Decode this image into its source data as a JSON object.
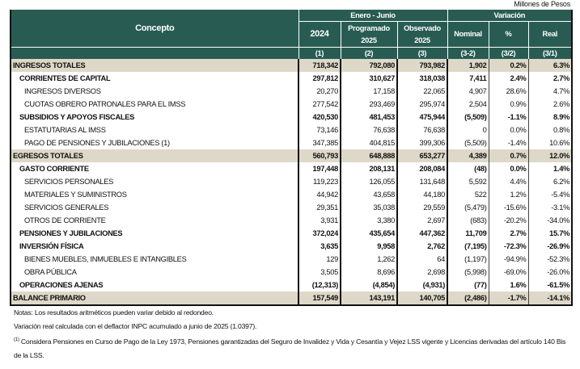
{
  "units": "Millones de Pesos",
  "header": {
    "concept": "Concepto",
    "period": "Enero - Junio",
    "variation": "Variación",
    "cols": [
      "2024",
      "Programado 2025",
      "Observado 2025",
      "Nominal",
      "%",
      "Real"
    ],
    "codes": [
      "(1)",
      "(2)",
      "(3)",
      "(3-2)",
      "(3/2)",
      "(3/1)"
    ]
  },
  "rows": [
    {
      "label": "INGRESOS TOTALES",
      "v": [
        "718,342",
        "792,080",
        "793,982",
        "1,902",
        "0.2%",
        "6.3%"
      ]
    },
    {
      "label": "CORRIENTES DE CAPITAL",
      "v": [
        "297,812",
        "310,627",
        "318,038",
        "7,411",
        "2.4%",
        "2.7%"
      ]
    },
    {
      "label": "INGRESOS DIVERSOS",
      "v": [
        "20,270",
        "17,158",
        "22,065",
        "4,907",
        "28.6%",
        "4.7%"
      ]
    },
    {
      "label": "CUOTAS OBRERO PATRONALES PARA EL IMSS",
      "v": [
        "277,542",
        "293,469",
        "295,974",
        "2,504",
        "0.9%",
        "2.6%"
      ]
    },
    {
      "label": "SUBSIDIOS Y APOYOS FISCALES",
      "v": [
        "420,530",
        "481,453",
        "475,944",
        "(5,509)",
        "-1.1%",
        "8.9%"
      ]
    },
    {
      "label": "ESTATUTARIAS AL IMSS",
      "v": [
        "73,146",
        "76,638",
        "76,638",
        "0",
        "0.0%",
        "0.8%"
      ]
    },
    {
      "label": "PAGO DE PENSIONES Y JUBILACIONES (1)",
      "v": [
        "347,385",
        "404,815",
        "399,306",
        "(5,509)",
        "-1.4%",
        "10.6%"
      ]
    },
    {
      "label": "EGRESOS TOTALES",
      "v": [
        "560,793",
        "648,888",
        "653,277",
        "4,389",
        "0.7%",
        "12.0%"
      ]
    },
    {
      "label": "GASTO CORRIENTE",
      "v": [
        "197,448",
        "208,131",
        "208,084",
        "(48)",
        "0.0%",
        "1.4%"
      ]
    },
    {
      "label": "SERVICIOS PERSONALES",
      "v": [
        "119,223",
        "126,055",
        "131,648",
        "5,592",
        "4.4%",
        "6.2%"
      ]
    },
    {
      "label": "MATERIALES Y SUMINISTROS",
      "v": [
        "44,942",
        "43,658",
        "44,180",
        "522",
        "1.2%",
        "-5.4%"
      ]
    },
    {
      "label": "SERVICIOS GENERALES",
      "v": [
        "29,351",
        "35,038",
        "29,559",
        "(5,479)",
        "-15.6%",
        "-3.1%"
      ]
    },
    {
      "label": "OTROS DE CORRIENTE",
      "v": [
        "3,931",
        "3,380",
        "2,697",
        "(683)",
        "-20.2%",
        "-34.0%"
      ]
    },
    {
      "label": "PENSIONES Y JUBILACIONES",
      "v": [
        "372,024",
        "435,654",
        "447,362",
        "11,709",
        "2.7%",
        "15.7%"
      ]
    },
    {
      "label": "INVERSIÓN FÍSICA",
      "v": [
        "3,635",
        "9,958",
        "2,762",
        "(7,195)",
        "-72.3%",
        "-26.9%"
      ]
    },
    {
      "label": "BIENES MUEBLES, INMUEBLES E INTANGIBLES",
      "v": [
        "129",
        "1,262",
        "64",
        "(1,197)",
        "-94.9%",
        "-52.3%"
      ]
    },
    {
      "label": "OBRA PÚBLICA",
      "v": [
        "3,505",
        "8,696",
        "2,698",
        "(5,998)",
        "-69.0%",
        "-26.0%"
      ]
    },
    {
      "label": "OPERACIONES AJENAS",
      "v": [
        "(12,313)",
        "(4,854)",
        "(4,931)",
        "(77)",
        "1.6%",
        "-61.5%"
      ]
    },
    {
      "label": "BALANCE PRIMARIO",
      "v": [
        "157,549",
        "143,191",
        "140,705",
        "(2,486)",
        "-1.7%",
        "-14.1%"
      ]
    }
  ],
  "notes": {
    "n1": "Notas: Los resultados aritméticos pueden variar debido al redondeo.",
    "n2": "Variación real calculada con el deflactor INPC acumulado a junio de 2025 (1.0397).",
    "fn_mark": "(1)",
    "fn": " Considera Pensiones  en Curso de Pago de la Ley  1973, Pensiones garantizadas del Seguro de Invalidez y Vida y Cesantía y Vejez LSS vigente y Licencias derivadas del artículo 140 Bis de la LSS."
  }
}
